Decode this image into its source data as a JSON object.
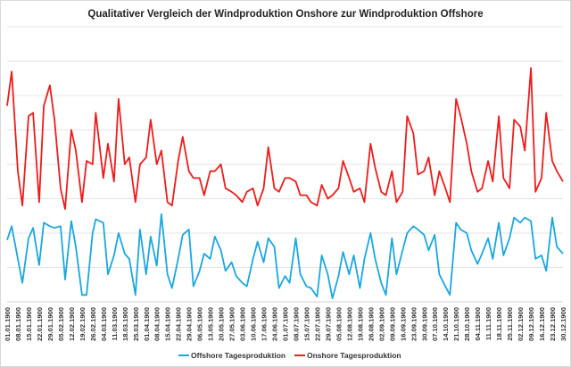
{
  "chart_data": {
    "type": "line",
    "title": "Qualitativer  Vergleich der Windproduktion  Onshore zur Windproduktion  Offshore",
    "xlabel": "",
    "ylabel": "",
    "y_tick_labels_shown": false,
    "ylim": [
      0,
      8
    ],
    "grid": "horizontal",
    "legend_position": "bottom",
    "x_tick_labels": [
      "01.01.1900",
      "08.01.1900",
      "15.01.1900",
      "22.01.1900",
      "29.01.1900",
      "05.02.1900",
      "12.02.1900",
      "19.02.1900",
      "26.02.1900",
      "04.03.1900",
      "11.03.1900",
      "18.03.1900",
      "25.03.1900",
      "01.04.1900",
      "08.04.1900",
      "15.04.1900",
      "22.04.1900",
      "29.04.1900",
      "06.05.1900",
      "13.05.1900",
      "20.05.1900",
      "27.05.1900",
      "03.06.1900",
      "10.06.1900",
      "17.06.1900",
      "24.06.1900",
      "01.07.1900",
      "08.07.1900",
      "15.07.1900",
      "22.07.1900",
      "29.07.1900",
      "05.08.1900",
      "12.08.1900",
      "19.08.1900",
      "26.08.1900",
      "02.09.1900",
      "09.09.1900",
      "16.09.1900",
      "23.09.1900",
      "30.09.1900",
      "07.10.1900",
      "14.10.1900",
      "21.10.1900",
      "28.10.1900",
      "04.11.1900",
      "11.11.1900",
      "18.11.1900",
      "25.11.1900",
      "02.12.1900",
      "09.12.1900",
      "16.12.1900",
      "23.12.1900",
      "30.12.1900"
    ],
    "series": [
      {
        "name": "Offshore Tagesproduktion",
        "color": "#1aa7e0",
        "points": [
          [
            "01.01",
            1.8
          ],
          [
            "04.01",
            2.2
          ],
          [
            "08.01",
            1.25
          ],
          [
            "11.01",
            0.55
          ],
          [
            "15.01",
            1.85
          ],
          [
            "18.01",
            2.15
          ],
          [
            "22.01",
            1.07
          ],
          [
            "25.01",
            2.3
          ],
          [
            "29.01",
            2.2
          ],
          [
            "01.02",
            2.15
          ],
          [
            "05.02",
            2.2
          ],
          [
            "08.02",
            0.65
          ],
          [
            "12.02",
            2.35
          ],
          [
            "15.02",
            1.6
          ],
          [
            "19.02",
            0.2
          ],
          [
            "22.02",
            0.2
          ],
          [
            "26.02",
            2.0
          ],
          [
            "28.02",
            2.4
          ],
          [
            "04.03",
            2.3
          ],
          [
            "07.03",
            0.8
          ],
          [
            "11.03",
            1.35
          ],
          [
            "14.03",
            2.0
          ],
          [
            "18.03",
            1.4
          ],
          [
            "21.03",
            1.25
          ],
          [
            "25.03",
            0.2
          ],
          [
            "28.03",
            2.1
          ],
          [
            "01.04",
            0.8
          ],
          [
            "04.04",
            1.9
          ],
          [
            "08.04",
            1.05
          ],
          [
            "11.04",
            2.55
          ],
          [
            "15.04",
            0.8
          ],
          [
            "18.04",
            0.4
          ],
          [
            "22.04",
            1.25
          ],
          [
            "25.04",
            1.95
          ],
          [
            "29.04",
            2.1
          ],
          [
            "02.05",
            0.45
          ],
          [
            "06.05",
            0.9
          ],
          [
            "09.05",
            1.4
          ],
          [
            "13.05",
            1.25
          ],
          [
            "16.05",
            1.9
          ],
          [
            "20.05",
            1.5
          ],
          [
            "23.05",
            0.9
          ],
          [
            "27.05",
            1.15
          ],
          [
            "30.05",
            0.75
          ],
          [
            "03.06",
            0.55
          ],
          [
            "06.06",
            0.45
          ],
          [
            "10.06",
            1.25
          ],
          [
            "13.06",
            1.75
          ],
          [
            "17.06",
            1.15
          ],
          [
            "20.06",
            1.85
          ],
          [
            "24.06",
            1.6
          ],
          [
            "27.06",
            0.4
          ],
          [
            "01.07",
            0.75
          ],
          [
            "04.07",
            0.55
          ],
          [
            "08.07",
            1.85
          ],
          [
            "11.07",
            0.8
          ],
          [
            "15.07",
            0.45
          ],
          [
            "18.07",
            0.4
          ],
          [
            "22.07",
            0.15
          ],
          [
            "25.07",
            1.35
          ],
          [
            "29.07",
            0.8
          ],
          [
            "01.08",
            0.1
          ],
          [
            "05.08",
            0.75
          ],
          [
            "08.08",
            1.45
          ],
          [
            "12.08",
            0.8
          ],
          [
            "15.08",
            1.35
          ],
          [
            "19.08",
            0.4
          ],
          [
            "22.08",
            1.25
          ],
          [
            "26.08",
            2.0
          ],
          [
            "29.08",
            1.25
          ],
          [
            "02.09",
            0.55
          ],
          [
            "05.09",
            0.2
          ],
          [
            "09.09",
            1.85
          ],
          [
            "12.09",
            0.8
          ],
          [
            "16.09",
            1.5
          ],
          [
            "19.09",
            2.0
          ],
          [
            "23.09",
            2.2
          ],
          [
            "26.09",
            2.1
          ],
          [
            "30.09",
            1.95
          ],
          [
            "03.10",
            1.5
          ],
          [
            "07.10",
            1.95
          ],
          [
            "10.10",
            0.8
          ],
          [
            "14.10",
            0.45
          ],
          [
            "17.10",
            0.2
          ],
          [
            "21.10",
            2.3
          ],
          [
            "24.10",
            2.1
          ],
          [
            "28.10",
            2.0
          ],
          [
            "31.10",
            1.5
          ],
          [
            "04.11",
            1.1
          ],
          [
            "07.11",
            1.4
          ],
          [
            "11.11",
            1.85
          ],
          [
            "14.11",
            1.25
          ],
          [
            "18.11",
            2.3
          ],
          [
            "21.11",
            1.35
          ],
          [
            "25.11",
            1.85
          ],
          [
            "28.11",
            2.45
          ],
          [
            "02.12",
            2.3
          ],
          [
            "05.12",
            2.45
          ],
          [
            "09.12",
            2.35
          ],
          [
            "12.12",
            1.25
          ],
          [
            "16.12",
            1.35
          ],
          [
            "19.12",
            0.9
          ],
          [
            "23.12",
            2.45
          ],
          [
            "26.12",
            1.6
          ],
          [
            "30.12",
            1.4
          ]
        ]
      },
      {
        "name": "Onshore Tagesproduktion",
        "color": "#ee1c1c",
        "points": [
          [
            "01.01",
            5.7
          ],
          [
            "04.01",
            6.7
          ],
          [
            "08.01",
            3.8
          ],
          [
            "11.01",
            2.8
          ],
          [
            "15.01",
            5.4
          ],
          [
            "18.01",
            5.5
          ],
          [
            "22.01",
            2.9
          ],
          [
            "25.01",
            5.7
          ],
          [
            "29.01",
            6.3
          ],
          [
            "01.02",
            5.3
          ],
          [
            "05.02",
            3.3
          ],
          [
            "08.02",
            2.7
          ],
          [
            "12.02",
            5.0
          ],
          [
            "15.02",
            4.4
          ],
          [
            "19.02",
            2.9
          ],
          [
            "22.02",
            4.1
          ],
          [
            "26.02",
            4.0
          ],
          [
            "28.02",
            5.5
          ],
          [
            "04.03",
            3.6
          ],
          [
            "07.03",
            4.6
          ],
          [
            "11.03",
            3.5
          ],
          [
            "14.03",
            5.9
          ],
          [
            "18.03",
            4.0
          ],
          [
            "21.03",
            4.2
          ],
          [
            "25.03",
            2.9
          ],
          [
            "28.03",
            4.0
          ],
          [
            "01.04",
            4.2
          ],
          [
            "04.04",
            5.3
          ],
          [
            "08.04",
            4.0
          ],
          [
            "11.04",
            4.4
          ],
          [
            "15.04",
            2.9
          ],
          [
            "18.04",
            2.8
          ],
          [
            "22.04",
            4.1
          ],
          [
            "25.04",
            4.8
          ],
          [
            "29.04",
            3.8
          ],
          [
            "02.05",
            3.6
          ],
          [
            "06.05",
            3.6
          ],
          [
            "09.05",
            3.1
          ],
          [
            "13.05",
            3.8
          ],
          [
            "16.05",
            3.8
          ],
          [
            "20.05",
            4.0
          ],
          [
            "23.05",
            3.3
          ],
          [
            "27.05",
            3.2
          ],
          [
            "30.05",
            3.1
          ],
          [
            "03.06",
            2.9
          ],
          [
            "06.06",
            3.2
          ],
          [
            "10.06",
            3.3
          ],
          [
            "13.06",
            2.8
          ],
          [
            "17.06",
            3.3
          ],
          [
            "20.06",
            4.5
          ],
          [
            "24.06",
            3.3
          ],
          [
            "27.06",
            3.2
          ],
          [
            "01.07",
            3.6
          ],
          [
            "04.07",
            3.6
          ],
          [
            "08.07",
            3.5
          ],
          [
            "11.07",
            3.1
          ],
          [
            "15.07",
            3.1
          ],
          [
            "18.07",
            2.9
          ],
          [
            "22.07",
            2.8
          ],
          [
            "25.07",
            3.4
          ],
          [
            "29.07",
            3.0
          ],
          [
            "01.08",
            3.1
          ],
          [
            "05.08",
            3.3
          ],
          [
            "08.08",
            4.1
          ],
          [
            "12.08",
            3.6
          ],
          [
            "15.08",
            3.2
          ],
          [
            "19.08",
            3.3
          ],
          [
            "22.08",
            2.9
          ],
          [
            "26.08",
            4.6
          ],
          [
            "29.08",
            3.9
          ],
          [
            "02.09",
            3.2
          ],
          [
            "05.09",
            3.1
          ],
          [
            "09.09",
            3.8
          ],
          [
            "12.09",
            2.9
          ],
          [
            "16.09",
            3.2
          ],
          [
            "19.09",
            5.4
          ],
          [
            "23.09",
            4.9
          ],
          [
            "26.09",
            3.7
          ],
          [
            "30.09",
            3.8
          ],
          [
            "03.10",
            4.2
          ],
          [
            "07.10",
            3.1
          ],
          [
            "10.10",
            3.8
          ],
          [
            "14.10",
            3.3
          ],
          [
            "17.10",
            2.9
          ],
          [
            "21.10",
            5.9
          ],
          [
            "24.10",
            5.4
          ],
          [
            "28.10",
            4.6
          ],
          [
            "31.10",
            3.8
          ],
          [
            "04.11",
            3.2
          ],
          [
            "07.11",
            3.3
          ],
          [
            "11.11",
            4.1
          ],
          [
            "14.11",
            3.5
          ],
          [
            "18.11",
            5.4
          ],
          [
            "21.11",
            3.6
          ],
          [
            "25.11",
            3.3
          ],
          [
            "28.11",
            5.3
          ],
          [
            "02.12",
            5.1
          ],
          [
            "05.12",
            4.4
          ],
          [
            "09.12",
            6.8
          ],
          [
            "12.12",
            3.2
          ],
          [
            "16.12",
            3.6
          ],
          [
            "19.12",
            5.5
          ],
          [
            "23.12",
            4.1
          ],
          [
            "26.12",
            3.8
          ],
          [
            "30.12",
            3.5
          ]
        ]
      }
    ]
  }
}
